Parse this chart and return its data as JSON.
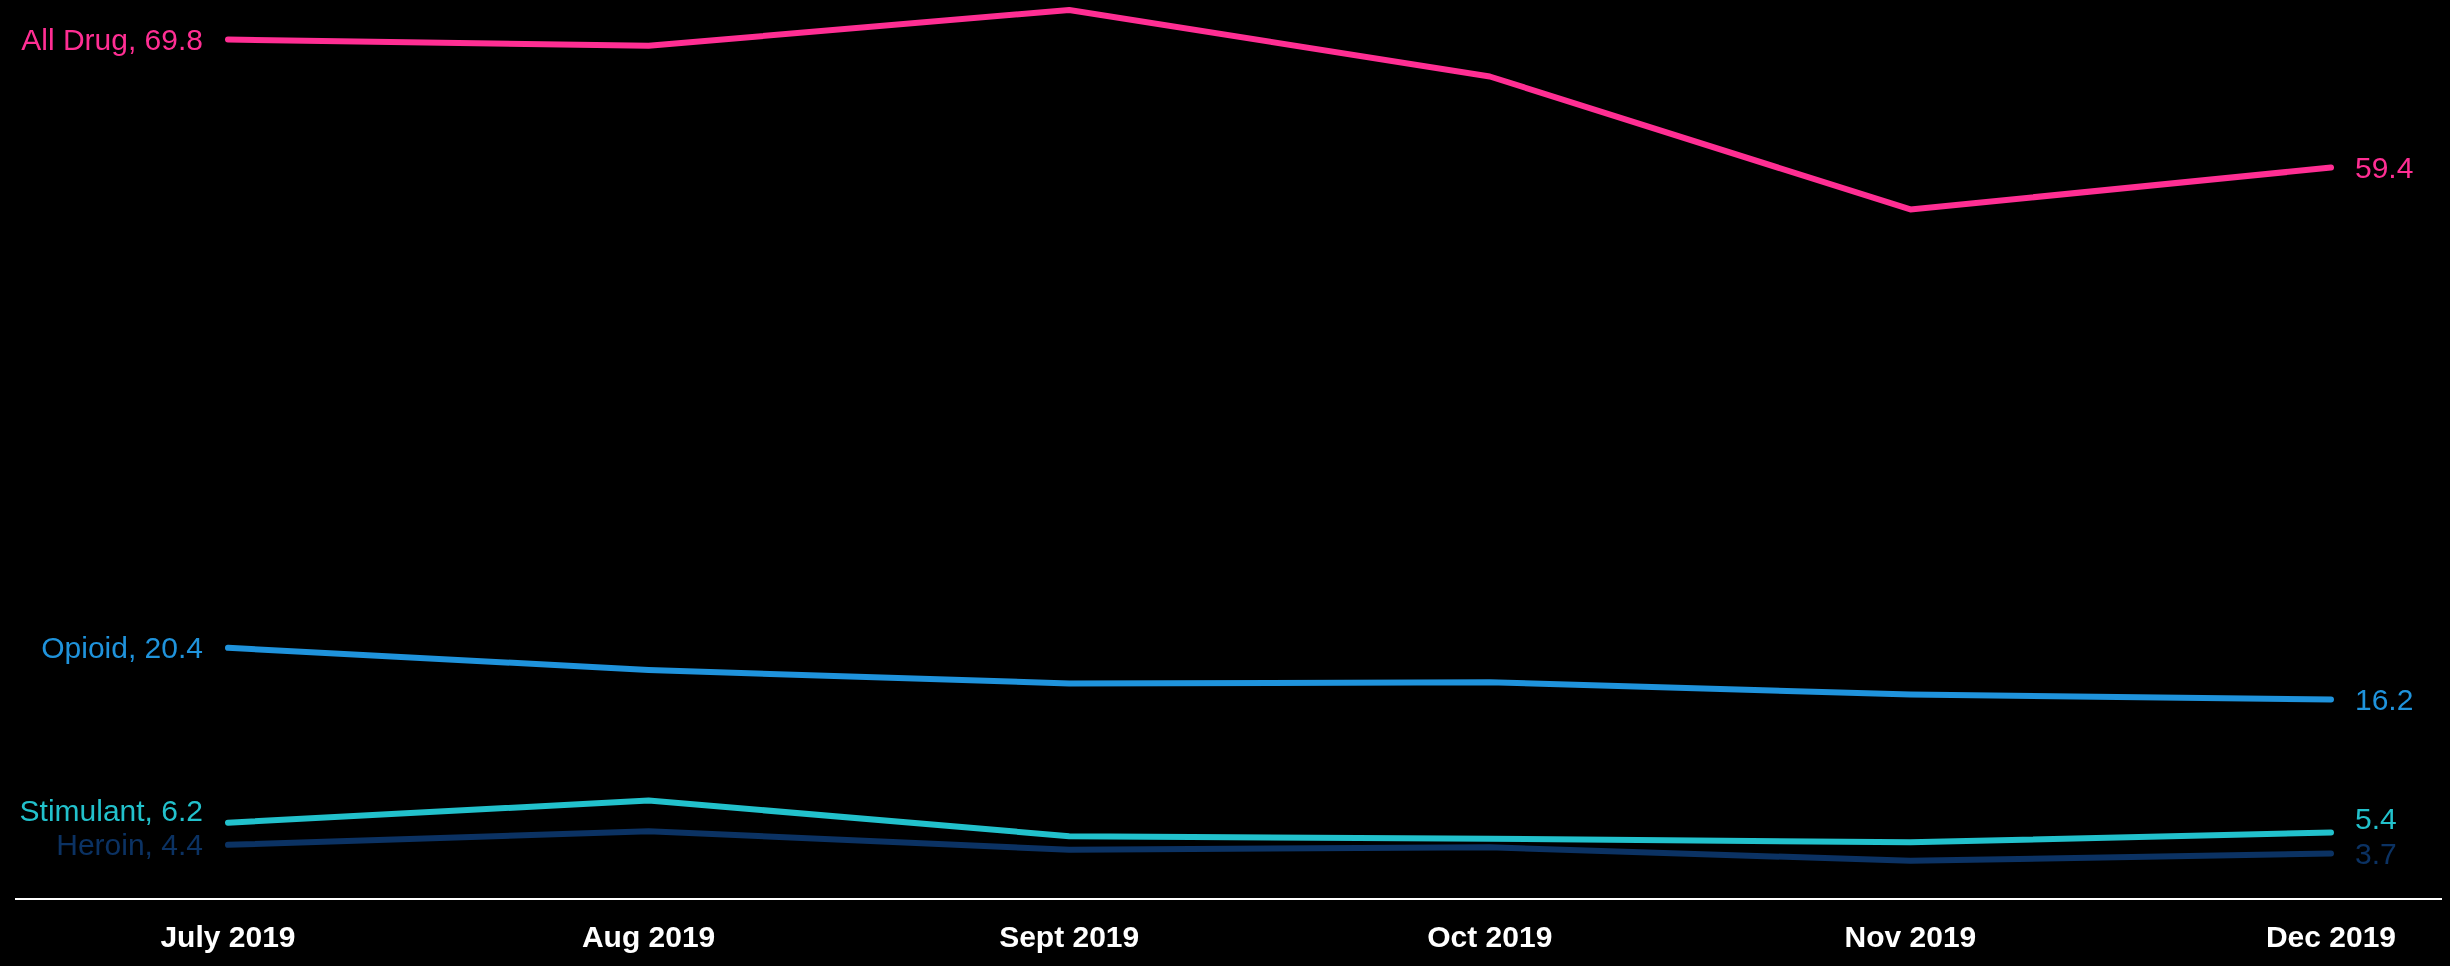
{
  "chart_data": {
    "type": "line",
    "categories": [
      "July 2019",
      "Aug 2019",
      "Sept 2019",
      "Oct 2019",
      "Nov 2019",
      "Dec 2019"
    ],
    "tick_labels": "x",
    "marker": "none",
    "line_style": "solid",
    "series": [
      {
        "name": "All Drug,",
        "color": "#ff2e93",
        "values": [
          69.8,
          69.3,
          72.2,
          66.8,
          56.0,
          59.4
        ],
        "value_labels": [
          "69.8",
          null,
          null,
          null,
          null,
          "59.4"
        ]
      },
      {
        "name": "Opioid,",
        "color": "#1f93dc",
        "values": [
          20.4,
          18.6,
          17.5,
          17.6,
          16.6,
          16.2
        ],
        "value_labels": [
          "20.4",
          null,
          null,
          null,
          null,
          "16.2"
        ]
      },
      {
        "name": "Stimulant,",
        "color": "#22c1cc",
        "values": [
          6.2,
          8.0,
          5.1,
          4.9,
          4.6,
          5.4
        ],
        "value_labels": [
          "6.2",
          null,
          null,
          null,
          null,
          "5.4"
        ]
      },
      {
        "name": "Heroin,",
        "color": "#0b3263",
        "values": [
          4.4,
          5.5,
          4.0,
          4.2,
          3.1,
          3.7
        ],
        "value_labels": [
          "4.4",
          null,
          null,
          null,
          null,
          "3.7"
        ]
      }
    ]
  }
}
